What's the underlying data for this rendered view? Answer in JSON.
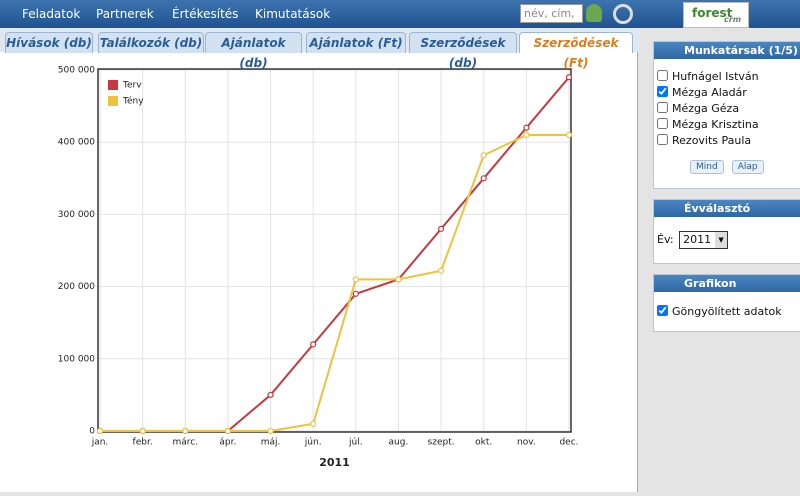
{
  "nav": {
    "items": [
      "Feladatok",
      "Partnerek",
      "Értékesítés",
      "Kimutatások"
    ],
    "search_placeholder": "név, cím,",
    "logo": [
      "forest",
      "crm"
    ]
  },
  "tabs": {
    "items": [
      "Hívások (db)",
      "Találkozók (db)",
      "Ajánlatok (db)",
      "Ajánlatok (Ft)",
      "Szerződések (db)",
      "Szerződések (Ft)"
    ],
    "active": 5
  },
  "chart_data": {
    "type": "line",
    "xlabel": "2011",
    "categories": [
      "jan.",
      "febr.",
      "márc.",
      "ápr.",
      "máj.",
      "jún.",
      "júl.",
      "aug.",
      "szept.",
      "okt.",
      "nov.",
      "dec."
    ],
    "series": [
      {
        "name": "Terv",
        "color": "#c8373d",
        "values": [
          0,
          0,
          0,
          0,
          50000,
          120000,
          190000,
          210000,
          280000,
          350000,
          420000,
          490000
        ]
      },
      {
        "name": "Tény",
        "color": "#f0c23c",
        "values": [
          0,
          0,
          0,
          0,
          0,
          10000,
          210000,
          210000,
          222000,
          382000,
          410000,
          410000
        ]
      }
    ],
    "ylim": [
      0,
      500000
    ],
    "yticks": [
      0,
      {
        "value": 100000,
        "label": "100 000"
      },
      {
        "value": 200000,
        "label": "200 000"
      },
      {
        "value": 300000,
        "label": "300 000"
      },
      {
        "value": 400000,
        "label": "400 000"
      },
      {
        "value": 500000,
        "label": "500 000"
      }
    ],
    "grid": true,
    "legend": "upper left"
  },
  "sidebar": {
    "members": {
      "title": "Munkatársak (1/5)",
      "items": [
        {
          "name": "Hufnágel István",
          "checked": false
        },
        {
          "name": "Mézga Aladár",
          "checked": true
        },
        {
          "name": "Mézga Géza",
          "checked": false
        },
        {
          "name": "Mézga Krisztina",
          "checked": false
        },
        {
          "name": "Rezovits Paula",
          "checked": false
        }
      ],
      "buttons": [
        "Mind",
        "Alap"
      ]
    },
    "year": {
      "title": "Évválasztó",
      "label": "Év:",
      "value": "2011"
    },
    "settings": {
      "title": "Grafikon beállítások",
      "option": "Göngyölített adatok",
      "checked": true
    }
  }
}
